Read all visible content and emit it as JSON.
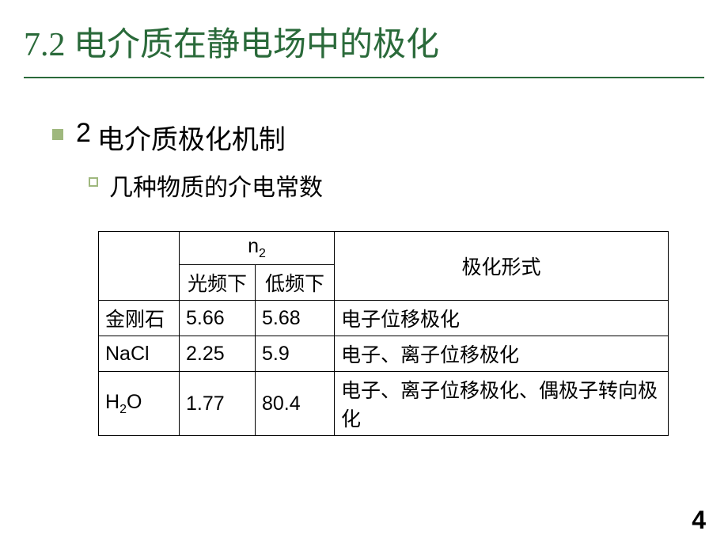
{
  "title": {
    "num": "7.2",
    "text": "电介质在静电场中的极化"
  },
  "heading1": {
    "num": "2",
    "text": "电介质极化机制"
  },
  "heading2": {
    "text": "几种物质的介电常数"
  },
  "table": {
    "header": {
      "n2": "n",
      "n2_sub": "2",
      "col_light": "光频下",
      "col_low": "低频下",
      "col_form": "极化形式"
    },
    "rows": [
      {
        "material": "金刚石",
        "light": "5.66",
        "low": "5.68",
        "form": "电子位移极化"
      },
      {
        "material": "NaCl",
        "light": "2.25",
        "low": "5.9",
        "form": "电子、离子位移极化"
      },
      {
        "material_main": "H",
        "material_sub": "2",
        "material_tail": "O",
        "light": "1.77",
        "low": "80.4",
        "form": "电子、离子位移极化、偶极子转向极化"
      }
    ]
  },
  "page": "4",
  "colors": {
    "title": "#2a6a3a",
    "bullet": "#9fb87e",
    "border": "#000000"
  }
}
